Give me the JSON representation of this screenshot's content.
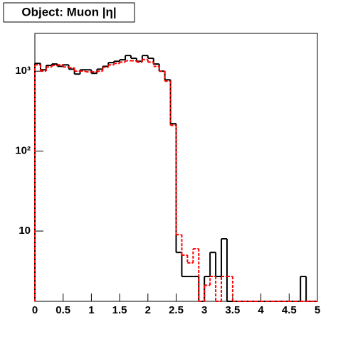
{
  "chart_data": {
    "type": "histogram",
    "title": "Object: Muon |η|",
    "bins": [
      0,
      0.1,
      0.2,
      0.3,
      0.4,
      0.5,
      0.6,
      0.7,
      0.8,
      0.9,
      1,
      1.1,
      1.2,
      1.3,
      1.4,
      1.5,
      1.6,
      1.7,
      1.8,
      1.9,
      2,
      2.1,
      2.2,
      2.3,
      2.4,
      2.5,
      2.6,
      2.7,
      2.8,
      2.9,
      3,
      3.1,
      3.2,
      3.3,
      3.4,
      3.5,
      3.6,
      3.7,
      3.8,
      3.9,
      4,
      4.1,
      4.2,
      4.3,
      4.4,
      4.5,
      4.6,
      4.7,
      4.8,
      4.9,
      5
    ],
    "series": [
      {
        "color": "#000000",
        "values": [
          1250,
          1040,
          1180,
          1230,
          1150,
          1200,
          1060,
          920,
          1040,
          1040,
          940,
          1060,
          1150,
          1280,
          1330,
          1390,
          1570,
          1450,
          1330,
          1570,
          1450,
          1230,
          1000,
          780,
          220,
          5.4,
          2.7,
          2.7,
          2.7,
          0,
          2.7,
          5.4,
          2.7,
          8,
          0,
          0,
          0,
          0,
          0,
          0,
          0,
          0,
          0,
          0,
          0,
          0,
          0,
          2.7,
          0,
          0
        ]
      },
      {
        "color": "#ff0000",
        "dashed": true,
        "values": [
          1200,
          1000,
          1130,
          1180,
          1200,
          1130,
          1100,
          1000,
          1000,
          980,
          980,
          1000,
          1120,
          1200,
          1250,
          1300,
          1350,
          1350,
          1300,
          1400,
          1300,
          1150,
          1000,
          750,
          210,
          9,
          5,
          4,
          6,
          0,
          2.1,
          2.7,
          0,
          2.7,
          2.7,
          0,
          0,
          0,
          0,
          0,
          0,
          0,
          0,
          0,
          0,
          0,
          0,
          0,
          0,
          0
        ]
      }
    ],
    "xlim": [
      0,
      5
    ],
    "xticks": [
      0,
      0.5,
      1,
      1.5,
      2,
      2.5,
      3,
      3.5,
      4,
      4.5,
      5
    ],
    "ylim": [
      1.32,
      2970
    ],
    "yticks": [
      {
        "value": 10,
        "label": "10"
      },
      {
        "value": 100,
        "label": "10²"
      },
      {
        "value": 1000,
        "label": "10³"
      }
    ],
    "log_y": true
  }
}
